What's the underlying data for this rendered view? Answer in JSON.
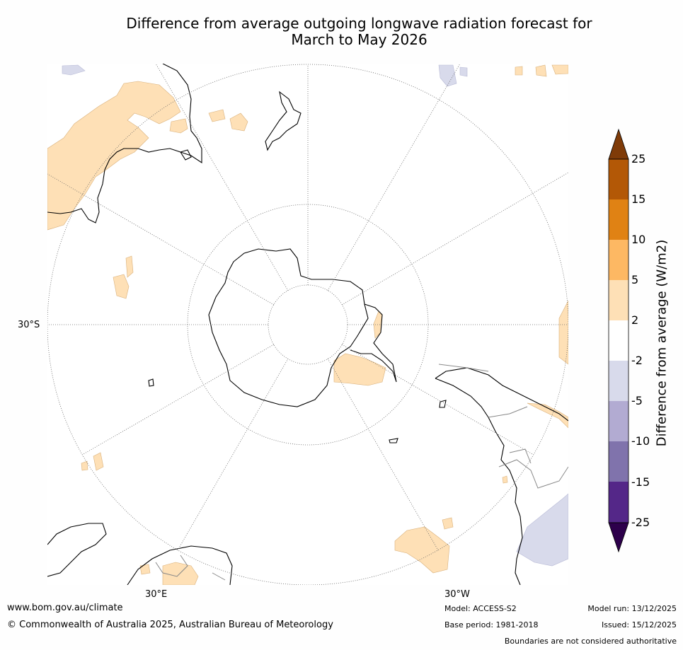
{
  "title": {
    "line1": "Difference from average outgoing longwave radiation forecast for",
    "line2": "March to May 2026"
  },
  "map": {
    "projection": "South polar stereographic",
    "lat_labels": [
      "30°S"
    ],
    "lon_labels": [
      "30°E",
      "30°W"
    ]
  },
  "legend": {
    "title": "Difference from average (W/m2)",
    "ticks": [
      "25",
      "15",
      "10",
      "5",
      "2",
      "-2",
      "-5",
      "-10",
      "-15",
      "-25"
    ],
    "bins": [
      {
        "range": "> 25",
        "color": "#7f3b08"
      },
      {
        "range": "15 to 25",
        "color": "#b35806"
      },
      {
        "range": "10 to 15",
        "color": "#e08214"
      },
      {
        "range": "5 to 10",
        "color": "#fdb863"
      },
      {
        "range": "2 to 5",
        "color": "#fee0b6"
      },
      {
        "range": "-2 to 2",
        "color": "#ffffff"
      },
      {
        "range": "-5 to -2",
        "color": "#d8daeb"
      },
      {
        "range": "-10 to -5",
        "color": "#b2abd2"
      },
      {
        "range": "-15 to -10",
        "color": "#8073ac"
      },
      {
        "range": "-25 to -15",
        "color": "#542788"
      },
      {
        "range": "< -25",
        "color": "#2d004b"
      }
    ]
  },
  "footer": {
    "website": "www.bom.gov.au/climate",
    "copyright": "© Commonwealth of Australia 2025, Australian Bureau of Meteorology",
    "model": "Model: ACCESS-S2",
    "base_period": "Base period: 1981-2018",
    "model_run": "Model run: 13/12/2025",
    "issued": "Issued: 15/12/2025",
    "note": "Boundaries are not considered authoritative"
  }
}
